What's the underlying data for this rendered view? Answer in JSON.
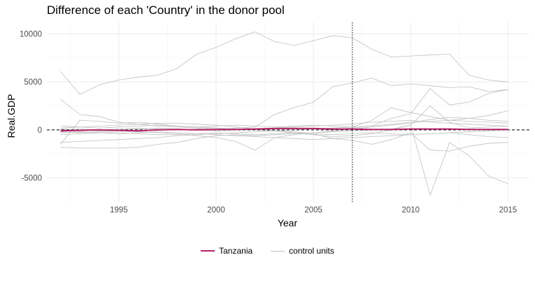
{
  "chart_data": {
    "type": "line",
    "title": "Difference of each 'Country' in the donor pool",
    "xlabel": "Year",
    "ylabel": "Real.GDP",
    "xlim": [
      1991.3,
      2016.1
    ],
    "ylim": [
      -7500,
      11200
    ],
    "x_ticks": [
      1995,
      2000,
      2005,
      2010,
      2015
    ],
    "y_ticks": [
      -5000,
      0,
      5000,
      10000
    ],
    "grid": true,
    "legend_position": "bottom",
    "treatment_year": 2007,
    "x": [
      1992,
      1993,
      1994,
      1995,
      1996,
      1997,
      1998,
      1999,
      2000,
      2001,
      2002,
      2003,
      2004,
      2005,
      2006,
      2007,
      2008,
      2009,
      2010,
      2011,
      2012,
      2013,
      2014,
      2015
    ],
    "treated": {
      "name": "Tanzania",
      "color": "#b5226b",
      "values": [
        -100,
        -50,
        0,
        -50,
        -100,
        0,
        50,
        0,
        50,
        50,
        100,
        150,
        150,
        150,
        100,
        100,
        50,
        50,
        100,
        100,
        100,
        50,
        50,
        50
      ]
    },
    "controls": {
      "name": "control units",
      "color": "#c0c0c0",
      "series": [
        [
          6100,
          3700,
          4700,
          5200,
          5500,
          5700,
          6400,
          7900,
          8600,
          9500,
          10200,
          9200,
          8800,
          9300,
          9800,
          9600,
          8400,
          7600,
          7700,
          7800,
          7900,
          5700,
          5200,
          5000
        ],
        [
          3200,
          1600,
          1400,
          800,
          600,
          400,
          300,
          200,
          0,
          200,
          300,
          1600,
          2300,
          2900,
          4500,
          4900,
          5400,
          4600,
          4800,
          4600,
          4400,
          4500,
          4000,
          4200
        ],
        [
          -1500,
          1000,
          900,
          700,
          800,
          600,
          400,
          300,
          200,
          100,
          0,
          -100,
          0,
          100,
          200,
          300,
          1000,
          2300,
          1800,
          1400,
          1000,
          1200,
          1500,
          2000
        ],
        [
          -1800,
          -1900,
          -1900,
          -1900,
          -1800,
          -1500,
          -1300,
          -900,
          -600,
          -500,
          -600,
          -500,
          -400,
          -300,
          -200,
          -100,
          0,
          100,
          500,
          2500,
          800,
          200,
          300,
          400
        ],
        [
          -1300,
          -1200,
          -1100,
          -1000,
          -900,
          -800,
          -600,
          -500,
          -400,
          -300,
          -200,
          -100,
          -200,
          -400,
          -900,
          -1100,
          -1500,
          -1000,
          -300,
          -2100,
          -2200,
          -1700,
          -1400,
          -1300
        ],
        [
          200,
          300,
          400,
          500,
          600,
          700,
          700,
          600,
          500,
          300,
          100,
          -100,
          -300,
          -500,
          -700,
          -600,
          -400,
          0,
          500,
          -6800,
          -1300,
          -2700,
          -4800,
          -5600
        ],
        [
          0,
          100,
          0,
          100,
          200,
          100,
          0,
          100,
          200,
          100,
          0,
          100,
          200,
          100,
          0,
          200,
          400,
          1200,
          1700,
          4300,
          2600,
          2900,
          3800,
          4200
        ],
        [
          -500,
          -400,
          -300,
          -300,
          -400,
          -500,
          -500,
          -400,
          -300,
          -400,
          -500,
          -400,
          -300,
          -400,
          -500,
          -400,
          -300,
          -400,
          -500,
          -400,
          -300,
          -500,
          -700,
          -800
        ],
        [
          400,
          300,
          200,
          300,
          400,
          500,
          400,
          300,
          400,
          500,
          400,
          300,
          400,
          500,
          400,
          300,
          400,
          600,
          800,
          900,
          1000,
          900,
          800,
          700
        ],
        [
          -200,
          -300,
          -200,
          -100,
          -200,
          -300,
          -400,
          -600,
          -800,
          -1200,
          -2100,
          -800,
          -500,
          -300,
          -100,
          100,
          300,
          500,
          700,
          1100,
          1300,
          1200,
          1000,
          900
        ],
        [
          100,
          0,
          -100,
          0,
          100,
          200,
          100,
          0,
          -100,
          0,
          100,
          200,
          300,
          400,
          500,
          600,
          800,
          900,
          1000,
          800,
          700,
          600,
          500,
          400
        ],
        [
          -300,
          -200,
          -300,
          -400,
          -300,
          -200,
          -300,
          -400,
          -500,
          -600,
          -700,
          -800,
          -900,
          -1000,
          -900,
          -800,
          -700,
          -600,
          -500,
          -400,
          -300,
          -200,
          -100,
          0
        ]
      ]
    }
  }
}
